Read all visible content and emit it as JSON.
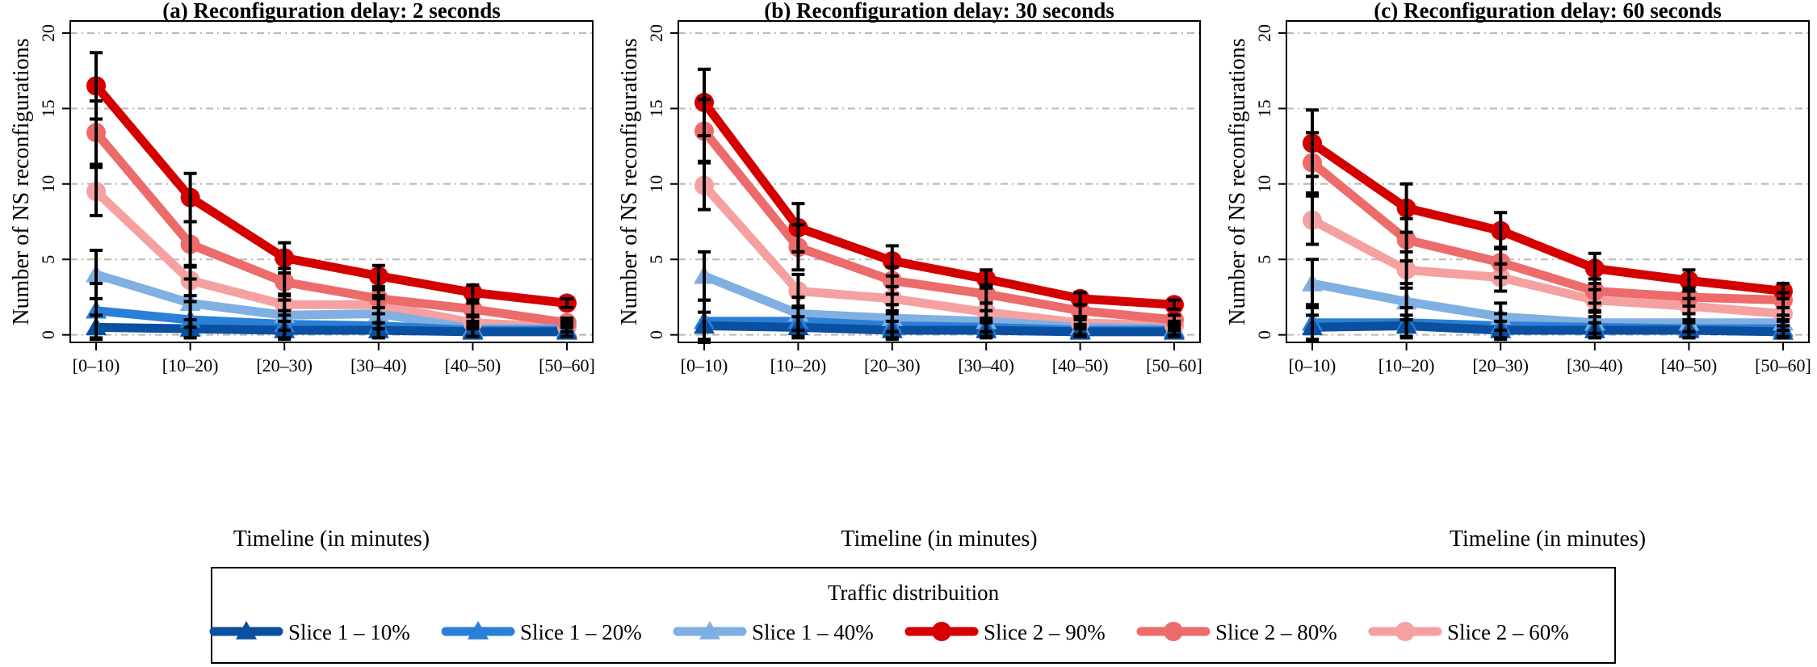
{
  "legend": {
    "title": "Traffic distribuition",
    "entries": [
      {
        "label": "Slice 1 – 10%",
        "color": "#0a4fa0",
        "marker": "triangle"
      },
      {
        "label": "Slice 1 – 20%",
        "color": "#2a7fd6",
        "marker": "triangle"
      },
      {
        "label": "Slice 1 – 40%",
        "color": "#80afe2",
        "marker": "triangle"
      },
      {
        "label": "Slice 2 – 90%",
        "color": "#d40000",
        "marker": "circle"
      },
      {
        "label": "Slice 2 – 80%",
        "color": "#ec6b6b",
        "marker": "circle"
      },
      {
        "label": "Slice 2 – 60%",
        "color": "#f5a1a1",
        "marker": "circle"
      }
    ]
  },
  "chart_data": [
    {
      "type": "line",
      "title": "(a) Reconfiguration delay: 2 seconds",
      "xlabel": "Timeline (in minutes)",
      "ylabel": "Number of NS reconfigurations",
      "categories": [
        "[0–10)",
        "[10–20)",
        "[20–30)",
        "[30–40)",
        "[40–50)",
        "[50–60]"
      ],
      "ylim": [
        -0.5,
        20.8
      ],
      "yticks": [
        0,
        5,
        10,
        15,
        20
      ],
      "grid": "horizontal dash-dot",
      "series": [
        {
          "name": "Slice 1 – 10%",
          "values": [
            0.5,
            0.4,
            0.3,
            0.3,
            0.2,
            0.2
          ],
          "err": [
            0.8,
            0.6,
            0.6,
            0.5,
            0.3,
            0.3
          ]
        },
        {
          "name": "Slice 1 – 20%",
          "values": [
            1.6,
            1.0,
            0.7,
            0.6,
            0.3,
            0.3
          ],
          "err": [
            1.8,
            1.2,
            0.9,
            0.8,
            0.4,
            0.4
          ]
        },
        {
          "name": "Slice 1 – 40%",
          "values": [
            4.0,
            2.1,
            1.3,
            1.4,
            0.4,
            0.4
          ],
          "err": [
            1.6,
            1.6,
            1.0,
            1.0,
            0.5,
            0.5
          ]
        },
        {
          "name": "Slice 2 – 90%",
          "values": [
            16.5,
            9.1,
            5.1,
            3.9,
            2.8,
            2.1
          ],
          "err": [
            2.2,
            1.6,
            1.0,
            0.7,
            0.5,
            0.3
          ]
        },
        {
          "name": "Slice 2 – 80%",
          "values": [
            13.4,
            6.0,
            3.5,
            2.4,
            1.7,
            0.8
          ],
          "err": [
            2.1,
            1.5,
            0.9,
            0.6,
            0.4,
            0.3
          ]
        },
        {
          "name": "Slice 2 – 60%",
          "values": [
            9.5,
            3.6,
            2.0,
            2.0,
            0.8,
            0.5
          ],
          "err": [
            1.6,
            1.0,
            0.7,
            0.6,
            0.4,
            0.3
          ]
        }
      ]
    },
    {
      "type": "line",
      "title": "(b) Reconfiguration delay: 30 seconds",
      "xlabel": "Timeline (in minutes)",
      "ylabel": "Number of NS reconfigurations",
      "categories": [
        "[0–10)",
        "[10–20)",
        "[20–30)",
        "[30–40)",
        "[40–50)",
        "[50–60]"
      ],
      "ylim": [
        -0.5,
        20.8
      ],
      "yticks": [
        0,
        5,
        10,
        15,
        20
      ],
      "grid": "horizontal dash-dot",
      "series": [
        {
          "name": "Slice 1 – 10%",
          "values": [
            0.6,
            0.5,
            0.3,
            0.3,
            0.2,
            0.2
          ],
          "err": [
            0.9,
            0.7,
            0.6,
            0.5,
            0.3,
            0.3
          ]
        },
        {
          "name": "Slice 1 – 20%",
          "values": [
            0.9,
            0.9,
            0.6,
            0.5,
            0.3,
            0.3
          ],
          "err": [
            1.4,
            1.0,
            0.8,
            0.6,
            0.4,
            0.4
          ]
        },
        {
          "name": "Slice 1 – 40%",
          "values": [
            3.9,
            1.4,
            1.1,
            0.9,
            0.5,
            0.4
          ],
          "err": [
            1.6,
            1.1,
            0.9,
            0.7,
            0.5,
            0.4
          ]
        },
        {
          "name": "Slice 2 – 90%",
          "values": [
            15.4,
            7.1,
            4.9,
            3.7,
            2.4,
            2.0
          ],
          "err": [
            2.2,
            1.6,
            1.0,
            0.6,
            0.4,
            0.3
          ]
        },
        {
          "name": "Slice 2 – 80%",
          "values": [
            13.5,
            5.8,
            3.6,
            2.7,
            1.6,
            1.0
          ],
          "err": [
            2.1,
            1.5,
            0.9,
            0.6,
            0.4,
            0.3
          ]
        },
        {
          "name": "Slice 2 – 60%",
          "values": [
            9.9,
            2.9,
            2.4,
            1.5,
            0.8,
            0.6
          ],
          "err": [
            1.6,
            1.1,
            0.8,
            0.6,
            0.4,
            0.3
          ]
        }
      ]
    },
    {
      "type": "line",
      "title": "(c) Reconfiguration delay: 60 seconds",
      "xlabel": "Timeline (in minutes)",
      "ylabel": "Number of NS reconfigurations",
      "categories": [
        "[0–10)",
        "[10–20)",
        "[20–30)",
        "[30–40)",
        "[40–50)",
        "[50–60]"
      ],
      "ylim": [
        -0.5,
        20.8
      ],
      "yticks": [
        0,
        5,
        10,
        15,
        20
      ],
      "grid": "horizontal dash-dot",
      "series": [
        {
          "name": "Slice 1 – 10%",
          "values": [
            0.5,
            0.6,
            0.3,
            0.3,
            0.3,
            0.2
          ],
          "err": [
            0.8,
            0.7,
            0.6,
            0.5,
            0.5,
            0.4
          ]
        },
        {
          "name": "Slice 1 – 20%",
          "values": [
            0.8,
            0.8,
            0.6,
            0.5,
            0.4,
            0.4
          ],
          "err": [
            1.2,
            1.0,
            0.8,
            0.7,
            0.6,
            0.5
          ]
        },
        {
          "name": "Slice 1 – 40%",
          "values": [
            3.4,
            2.2,
            1.2,
            0.8,
            0.8,
            0.8
          ],
          "err": [
            1.6,
            1.2,
            0.9,
            0.7,
            0.6,
            0.5
          ]
        },
        {
          "name": "Slice 2 – 90%",
          "values": [
            12.7,
            8.4,
            6.9,
            4.4,
            3.6,
            2.9
          ],
          "err": [
            2.2,
            1.6,
            1.2,
            1.0,
            0.7,
            0.5
          ]
        },
        {
          "name": "Slice 2 – 80%",
          "values": [
            11.4,
            6.3,
            4.8,
            2.9,
            2.5,
            2.3
          ],
          "err": [
            2.0,
            1.4,
            1.0,
            0.8,
            0.6,
            0.5
          ]
        },
        {
          "name": "Slice 2 – 60%",
          "values": [
            7.6,
            4.3,
            3.8,
            2.3,
            1.9,
            1.4
          ],
          "err": [
            1.6,
            1.2,
            0.9,
            0.7,
            0.5,
            0.4
          ]
        }
      ]
    }
  ]
}
